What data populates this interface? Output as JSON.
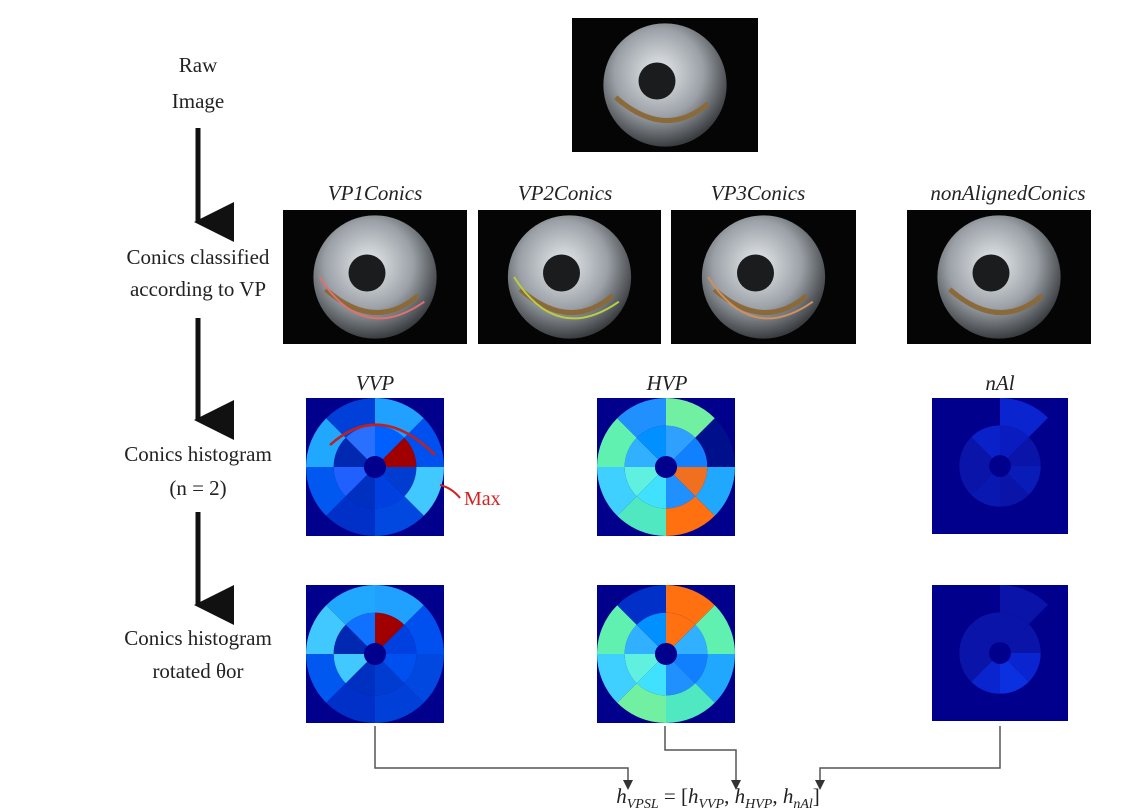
{
  "steps": [
    {
      "lines": [
        "Raw",
        "Image"
      ]
    },
    {
      "lines": [
        "Conics classified",
        "according to VP"
      ]
    },
    {
      "lines": [
        "Conics histogram",
        "(n = 2)"
      ]
    },
    {
      "lines": [
        "Conics histogram",
        "rotated θor"
      ]
    }
  ],
  "image_titles": [
    "VP1Conics",
    "VP2Conics",
    "VP3Conics",
    "nonAlignedConics"
  ],
  "histogram_titles": [
    "VVP",
    "HVP",
    "nAl"
  ],
  "annotation": "Max",
  "formula": {
    "terms": [
      {
        "base": "h",
        "sub": "VPSL"
      },
      {
        "base": "h",
        "sub": "VVP"
      },
      {
        "base": "h",
        "sub": "HVP"
      },
      {
        "base": "h",
        "sub": "nAl"
      }
    ],
    "separators": [
      " = [",
      ", ",
      ", ",
      "]"
    ]
  }
}
